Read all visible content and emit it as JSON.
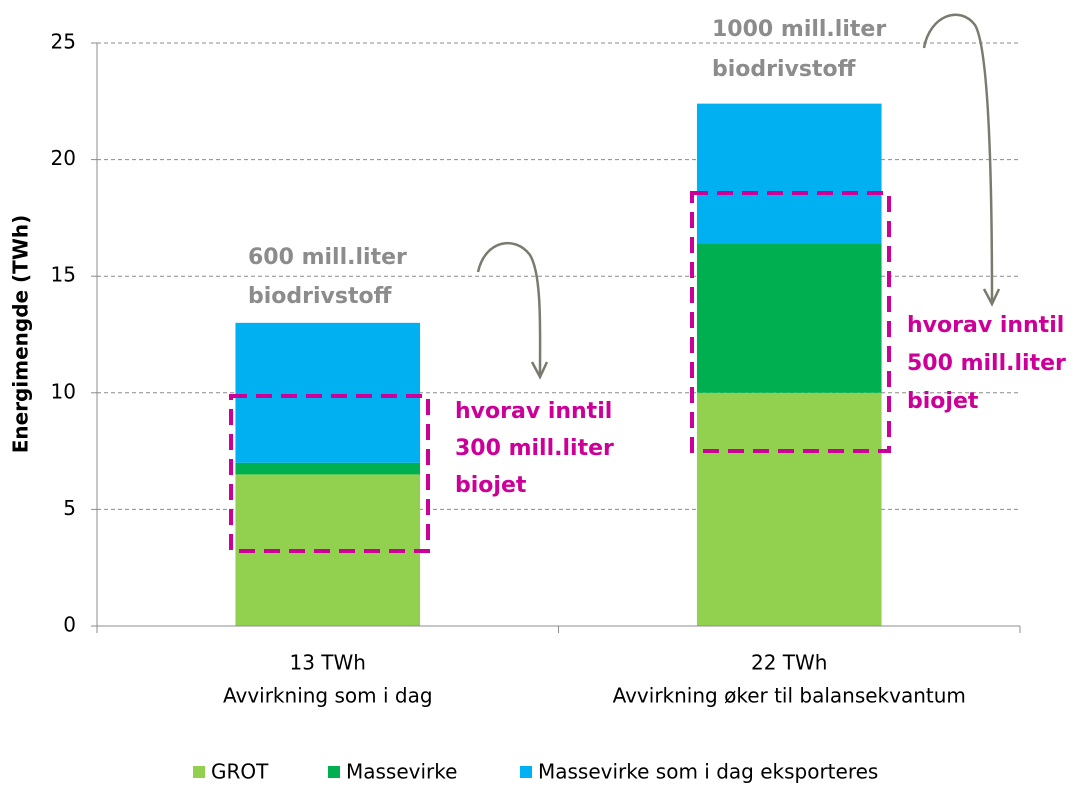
{
  "chart_data": {
    "type": "stacked_bar",
    "y_axis_label": "Energimengde (TWh)",
    "categories": [
      [
        "13 TWh",
        "Avvirkning som i dag"
      ],
      [
        "22 TWh",
        "Avvirkning øker til balansekvantum"
      ]
    ],
    "series": [
      {
        "name": "GROT",
        "color": "#92d050",
        "values": [
          6.5,
          10.0
        ]
      },
      {
        "name": "Massevirke",
        "color": "#00b050",
        "values": [
          0.5,
          6.4
        ]
      },
      {
        "name": "Massevirke som i dag eksporteres",
        "color": "#00b0f0",
        "values": [
          6.0,
          6.0
        ]
      }
    ],
    "ylim": [
      0,
      25
    ],
    "yticks": [
      0,
      5,
      10,
      15,
      20,
      25
    ],
    "grid": true,
    "legend": "bottom",
    "annotations": [
      {
        "lines": [
          "600 mill.liter",
          "biodrivstoff"
        ],
        "color": "#8c8c8c"
      },
      {
        "lines": [
          "1000 mill.liter",
          "biodrivstoff"
        ],
        "color": "#8c8c8c"
      },
      {
        "lines": [
          "hvorav inntil",
          "300 mill.liter",
          "biojet"
        ],
        "color": "#cc0099"
      },
      {
        "lines": [
          "hvorav inntil",
          "500 mill.liter",
          "biojet"
        ],
        "color": "#cc0099"
      }
    ]
  }
}
